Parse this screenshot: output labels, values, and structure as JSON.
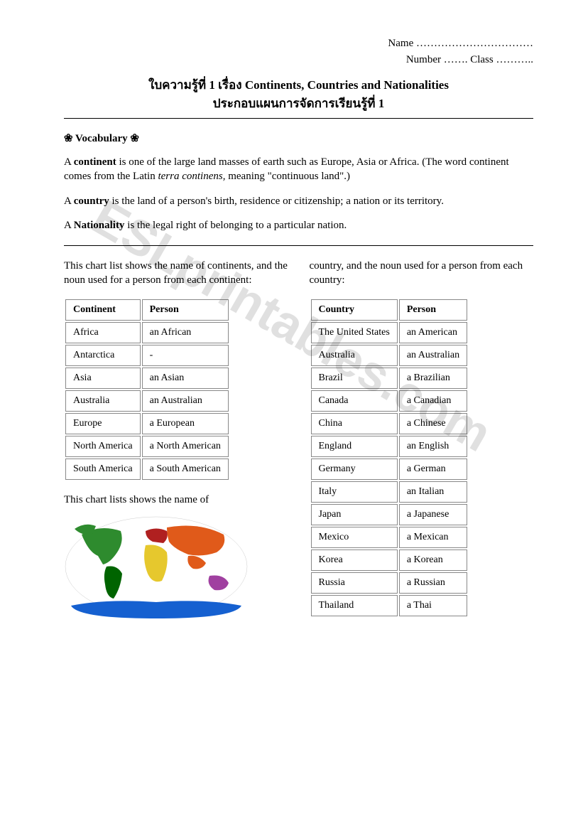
{
  "watermark": "ESLprintables.com",
  "header": {
    "name_line": "Name ……………………………",
    "number_class_line": "Number ……. Class ……….."
  },
  "title": {
    "line1_thai": "ใบความรู้ที่ 1 เรื่อง ",
    "line1_en": "Continents, Countries and Nationalities",
    "line2": "ประกอบแผนการจัดการเรียนรู้ที่ 1"
  },
  "vocab": {
    "heading": "❀ Vocabulary ❀",
    "p1_prefix": "A ",
    "p1_term": "continent",
    "p1_text": " is one of the large land masses of earth such as Europe, Asia or Africa. (The word continent comes from the Latin ",
    "p1_ital": "terra continens",
    "p1_suffix": ", meaning \"continuous land\".)",
    "p2_prefix": "A ",
    "p2_term": "country",
    "p2_text": " is the land of a person's birth, residence or citizenship; a nation or its territory.",
    "p3_prefix": "A ",
    "p3_term": "Nationality",
    "p3_text": " is the legal right of belonging to a particular nation."
  },
  "left": {
    "intro": "This chart list shows the name of continents, and the noun used for a person from each continent:",
    "table": {
      "headers": [
        "Continent",
        "Person"
      ],
      "rows": [
        [
          "Africa",
          "an African"
        ],
        [
          "Antarctica",
          "-"
        ],
        [
          "Asia",
          "an Asian"
        ],
        [
          "Australia",
          "an Australian"
        ],
        [
          "Europe",
          "a European"
        ],
        [
          "North America",
          "a North American"
        ],
        [
          "South America",
          "a South American"
        ]
      ]
    },
    "below": "This chart lists shows the name of"
  },
  "right": {
    "intro": "country, and the noun used for a person from each country:",
    "table": {
      "headers": [
        "Country",
        "Person"
      ],
      "rows": [
        [
          "The United States",
          "an American"
        ],
        [
          "Australia",
          "an Australian"
        ],
        [
          "Brazil",
          "a Brazilian"
        ],
        [
          "Canada",
          "a Canadian"
        ],
        [
          "China",
          "a Chinese"
        ],
        [
          "England",
          "an English"
        ],
        [
          "Germany",
          "a German"
        ],
        [
          "Italy",
          "an Italian"
        ],
        [
          "Japan",
          "a Japanese"
        ],
        [
          "Mexico",
          "a Mexican"
        ],
        [
          "Korea",
          "a Korean"
        ],
        [
          "Russia",
          "a Russian"
        ],
        [
          "Thailand",
          "a Thai"
        ]
      ]
    }
  },
  "map": {
    "background": "#ffffff",
    "continents": [
      {
        "name": "NorthAmerica",
        "fill": "#2e8b2e"
      },
      {
        "name": "SouthAmerica",
        "fill": "#006400"
      },
      {
        "name": "Europe",
        "fill": "#b02020"
      },
      {
        "name": "Africa",
        "fill": "#e6c82d"
      },
      {
        "name": "Asia",
        "fill": "#e05a1a"
      },
      {
        "name": "Australia",
        "fill": "#a040a0"
      },
      {
        "name": "Antarctica",
        "fill": "#1560d0"
      }
    ]
  }
}
